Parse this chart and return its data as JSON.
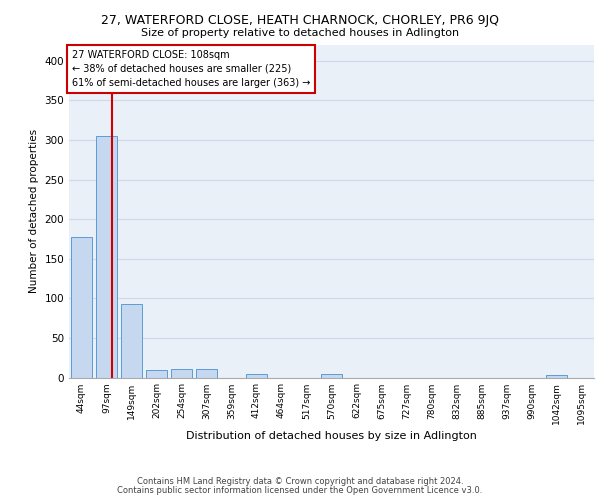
{
  "title": "27, WATERFORD CLOSE, HEATH CHARNOCK, CHORLEY, PR6 9JQ",
  "subtitle": "Size of property relative to detached houses in Adlington",
  "xlabel": "Distribution of detached houses by size in Adlington",
  "ylabel": "Number of detached properties",
  "bar_labels": [
    "44sqm",
    "97sqm",
    "149sqm",
    "202sqm",
    "254sqm",
    "307sqm",
    "359sqm",
    "412sqm",
    "464sqm",
    "517sqm",
    "570sqm",
    "622sqm",
    "675sqm",
    "727sqm",
    "780sqm",
    "832sqm",
    "885sqm",
    "937sqm",
    "990sqm",
    "1042sqm",
    "1095sqm"
  ],
  "bar_values": [
    178,
    305,
    93,
    9,
    11,
    11,
    0,
    4,
    0,
    0,
    4,
    0,
    0,
    0,
    0,
    0,
    0,
    0,
    0,
    3,
    0
  ],
  "bar_color": "#c5d8f0",
  "bar_edge_color": "#5b9bd5",
  "property_line_color": "#cc0000",
  "annotation_text": "27 WATERFORD CLOSE: 108sqm\n← 38% of detached houses are smaller (225)\n61% of semi-detached houses are larger (363) →",
  "annotation_box_color": "#ffffff",
  "annotation_box_edge": "#cc0000",
  "ylim": [
    0,
    420
  ],
  "yticks": [
    0,
    50,
    100,
    150,
    200,
    250,
    300,
    350,
    400
  ],
  "grid_color": "#d0d8e8",
  "background_color": "#eaf0f8",
  "footer_line1": "Contains HM Land Registry data © Crown copyright and database right 2024.",
  "footer_line2": "Contains public sector information licensed under the Open Government Licence v3.0."
}
